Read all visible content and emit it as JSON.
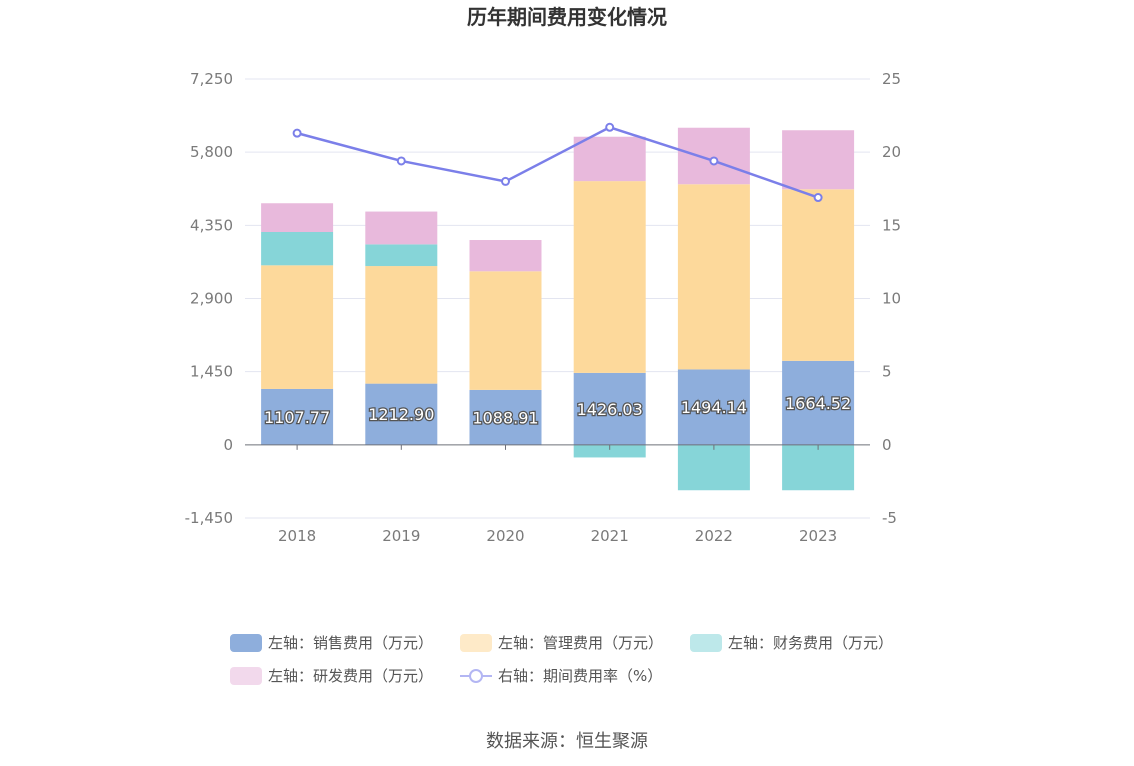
{
  "title": "历年期间费用变化情况",
  "source": "数据来源：恒生聚源",
  "chart_data": {
    "type": "bar",
    "stacked": true,
    "categories": [
      "2018",
      "2019",
      "2020",
      "2021",
      "2022",
      "2023"
    ],
    "left_axis": {
      "min": -1450,
      "max": 7250,
      "ticks": [
        "-1,450",
        "0",
        "1,450",
        "2,900",
        "4,350",
        "5,800",
        "7,250"
      ],
      "tick_values": [
        -1450,
        0,
        1450,
        2900,
        4350,
        5800,
        7250
      ]
    },
    "right_axis": {
      "min": -5,
      "max": 25,
      "ticks": [
        "-5",
        "0",
        "5",
        "10",
        "15",
        "20",
        "25"
      ],
      "tick_values": [
        -5,
        0,
        5,
        10,
        15,
        20,
        25
      ]
    },
    "series": [
      {
        "name": "左轴：销售费用（万元）",
        "axis": "left",
        "type": "bar",
        "color": "#8eaedc",
        "values": [
          1107.77,
          1212.9,
          1088.91,
          1426.03,
          1494.14,
          1664.52
        ],
        "labels": [
          "1107.77",
          "1212.90",
          "1088.91",
          "1426.03",
          "1494.14",
          "1664.52"
        ]
      },
      {
        "name": "左轴：管理费用（万元）",
        "axis": "left",
        "type": "bar",
        "color": "#fdd99b",
        "values": [
          2450,
          2330,
          2350,
          3800,
          3670,
          3400
        ]
      },
      {
        "name": "左轴：财务费用（万元）",
        "axis": "left",
        "type": "bar",
        "color": "#86d5d8",
        "values": [
          660,
          430,
          0,
          -250,
          -900,
          -900
        ]
      },
      {
        "name": "左轴：研发费用（万元）",
        "axis": "left",
        "type": "bar",
        "color": "#e8b9dc",
        "values": [
          570,
          650,
          620,
          880,
          1120,
          1170
        ]
      },
      {
        "name": "右轴：期间费用率（%）",
        "axis": "right",
        "type": "line",
        "color": "#7b7fe9",
        "values": [
          21.3,
          19.4,
          18.0,
          21.7,
          19.4,
          16.9
        ]
      }
    ],
    "legend_position": "bottom",
    "grid": true
  }
}
